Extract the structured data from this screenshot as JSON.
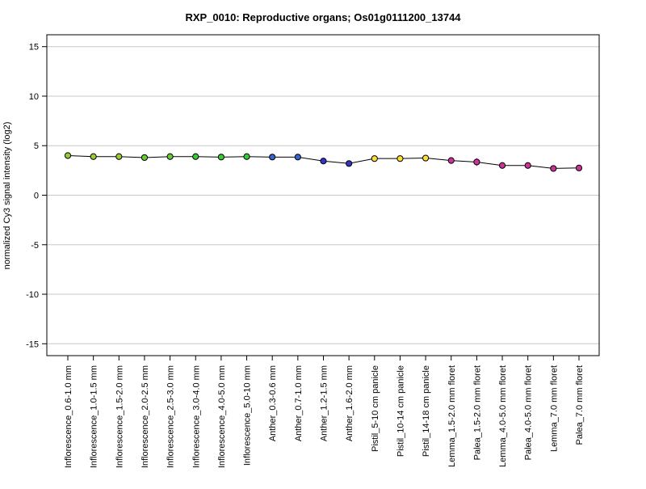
{
  "chart_data": {
    "type": "line",
    "title": "RXP_0010: Reproductive organs; Os01g0111200_13744",
    "xlabel": "",
    "ylabel": "normalized Cy3 signal intensity (log2)",
    "ylim": [
      -16.2,
      16.2
    ],
    "yticks": [
      -15,
      -10,
      -5,
      0,
      5,
      10,
      15
    ],
    "grid": true,
    "categories": [
      "Inflorescence_0.6-1.0 mm",
      "Inflorescence_1.0-1.5 mm",
      "Inflorescence_1.5-2.0 mm",
      "Inflorescence_2.0-2.5 mm",
      "Inflorescence_2.5-3.0 mm",
      "Inflorescence_3.0-4.0 mm",
      "Inflorescence_4.0-5.0 mm",
      "Inflorescence_5.0-10 mm",
      "Anther_0.3-0.6 mm",
      "Anther_0.7-1.0 mm",
      "Anther_1.2-1.5 mm",
      "Anther_1.6-2.0 mm",
      "Pistil_5-10 cm panicle",
      "Pistil_10-14 cm panicle",
      "Pistil_14-18 cm panicle",
      "Lemma_1.5-2.0 mm floret",
      "Palea_1.5-2.0 mm floret",
      "Lemma_4.0-5.0 mm floret",
      "Palea_4.0-5.0 mm floret",
      "Lemma_7.0 mm floret",
      "Palea_7.0 mm floret"
    ],
    "series": [
      {
        "values": [
          4.0,
          3.9,
          3.9,
          3.8,
          3.9,
          3.9,
          3.85,
          3.9,
          3.85,
          3.85,
          3.45,
          3.2,
          3.7,
          3.7,
          3.75,
          3.5,
          3.35,
          3.0,
          3.0,
          2.7,
          2.75
        ],
        "errors": [
          0.1,
          0.1,
          0.1,
          0.1,
          0.1,
          0.1,
          0.1,
          0.1,
          0.1,
          0.1,
          0.1,
          0.1,
          0.2,
          0.1,
          0.1,
          0.2,
          0.4,
          0.1,
          0.1,
          0.1,
          0.15
        ],
        "point_colors": [
          "#99CC33",
          "#99CC33",
          "#99CC33",
          "#66CC33",
          "#66CC33",
          "#33CC33",
          "#33CC33",
          "#33CC33",
          "#3366CC",
          "#3366CC",
          "#3333CC",
          "#3333CC",
          "#FFDD33",
          "#FFDD33",
          "#FFDD33",
          "#CC3399",
          "#CC3399",
          "#CC3399",
          "#CC3399",
          "#CC3399",
          "#CC3399"
        ]
      }
    ]
  }
}
